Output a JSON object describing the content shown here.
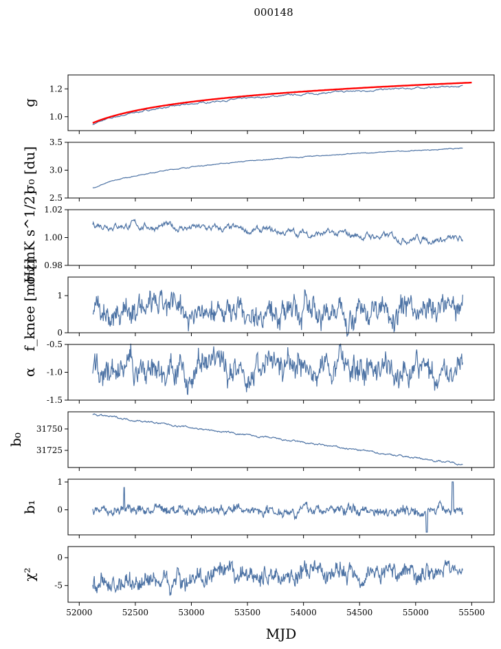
{
  "figure": {
    "title": "000148",
    "xlabel": "MJD"
  },
  "chart_data": {
    "type": "line",
    "title": "000148",
    "x_range": [
      51900,
      55700
    ],
    "x_ticks": [
      52000,
      52500,
      53000,
      53500,
      54000,
      54500,
      55000,
      55500
    ],
    "x_start": 52120,
    "x_end": 55420,
    "series_color": "#4c72a4",
    "panels": [
      {
        "id": "g",
        "ylabel": "g",
        "ylim": [
          0.9,
          1.3
        ],
        "yticks": [
          1.0,
          1.2
        ],
        "shape": "log",
        "start": 0.945,
        "end": 1.22,
        "noise": 0.003,
        "overlay": {
          "color": "#ff0000",
          "start": 0.955,
          "end": 1.245
        }
      },
      {
        "id": "sigma0-du",
        "ylabel": "σ₀ [du]",
        "ylim": [
          2.5,
          3.5
        ],
        "yticks": [
          2.5,
          3.0,
          3.5
        ],
        "shape": "log",
        "start": 2.68,
        "end": 3.39,
        "noise": 0.004
      },
      {
        "id": "sigma0-mk",
        "ylabel": "σ₀[mK s^1/2]",
        "ylim": [
          0.98,
          1.02
        ],
        "yticks": [
          0.98,
          1.0,
          1.02
        ],
        "shape": "linear",
        "start": 1.01,
        "end": 0.998,
        "noise": 0.0015
      },
      {
        "id": "fknee",
        "ylabel": "f_knee [mHz]",
        "ylim": [
          0,
          1.5
        ],
        "yticks": [
          0,
          1
        ],
        "shape": "flat",
        "start": 0.6,
        "end": 0.62,
        "noise": 0.15
      },
      {
        "id": "alpha",
        "ylabel": "α",
        "ylim": [
          -1.5,
          -0.5
        ],
        "yticks": [
          -1.5,
          -1.0,
          -0.5
        ],
        "shape": "flat",
        "start": -0.95,
        "end": -0.95,
        "noise": 0.11
      },
      {
        "id": "b0",
        "ylabel": "b₀",
        "ylim": [
          31705,
          31770
        ],
        "yticks": [
          31725,
          31750
        ],
        "shape": "linear",
        "start": 31767,
        "end": 31709,
        "noise": 0.6
      },
      {
        "id": "b1",
        "ylabel": "b₁",
        "ylim": [
          -0.9,
          1.1
        ],
        "yticks": [
          0,
          1
        ],
        "shape": "flat",
        "start": 0.0,
        "end": 0.0,
        "noise": 0.08
      },
      {
        "id": "chi2",
        "ylabel": "χ²",
        "ylim": [
          -8,
          2
        ],
        "yticks": [
          -5,
          0
        ],
        "shape": "rise",
        "start": -5.2,
        "end": -2.0,
        "noise": 0.75
      }
    ]
  }
}
